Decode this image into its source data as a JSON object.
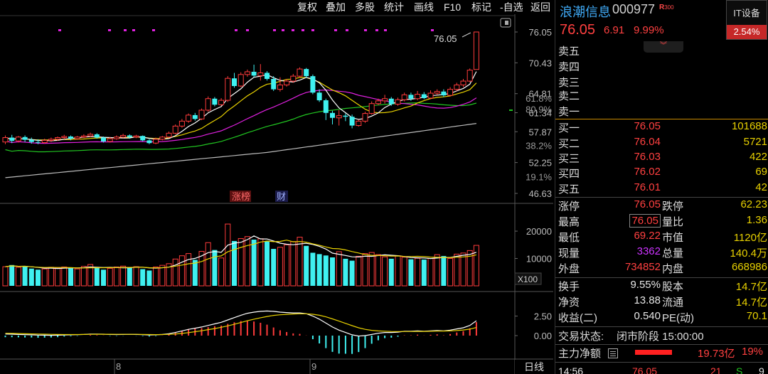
{
  "toolbar": {
    "items": [
      "复权",
      "叠加",
      "多股",
      "统计",
      "画线",
      "F10",
      "标记",
      "-自选",
      "返回"
    ]
  },
  "stock": {
    "name": "浪潮信息",
    "code": "000977",
    "badge": "R",
    "badge_sub": "300",
    "price": "76.05",
    "change": "6.91",
    "change_pct": "9.99%",
    "sector_name": "IT设备",
    "sector_change": "2.54%"
  },
  "order_book": {
    "asks": [
      {
        "label": "卖五"
      },
      {
        "label": "卖四"
      },
      {
        "label": "卖三"
      },
      {
        "label": "卖二"
      },
      {
        "label": "卖一"
      }
    ],
    "bids": [
      {
        "label": "买一",
        "price": "76.05",
        "vol": "101688"
      },
      {
        "label": "买二",
        "price": "76.04",
        "vol": "5721"
      },
      {
        "label": "买三",
        "price": "76.03",
        "vol": "422"
      },
      {
        "label": "买四",
        "price": "76.02",
        "vol": "69"
      },
      {
        "label": "买五",
        "price": "76.01",
        "vol": "42"
      }
    ]
  },
  "quote": {
    "limit_up_label": "涨停",
    "limit_up": "76.05",
    "limit_down_label": "跌停",
    "limit_down": "62.23",
    "high_label": "最高",
    "high": "76.05",
    "vol_ratio_label": "量比",
    "vol_ratio": "1.36",
    "low_label": "最低",
    "low": "69.22",
    "mktcap_label": "市值",
    "mktcap": "1120亿",
    "cur_vol_label": "现量",
    "cur_vol": "3362",
    "total_vol_label": "总量",
    "total_vol": "140.4万",
    "outer_label": "外盘",
    "outer": "734852",
    "inner_label": "内盘",
    "inner": "668986",
    "turnover_label": "换手",
    "turnover": "9.55%",
    "capital_label": "股本",
    "capital": "14.7亿",
    "nav_label": "净资",
    "nav": "13.88",
    "float_label": "流通",
    "float": "14.7亿",
    "eps_label": "收益(二)",
    "eps": "0.540",
    "pe_label": "PE(动)",
    "pe": "70.1",
    "status_label": "交易状态:",
    "status": "闭市阶段 15:00:00",
    "netflow_label": "主力净额",
    "netflow": "19.73亿",
    "netflow_pct": "19%",
    "tick_time": "14:56",
    "tick_price": "76.05",
    "tick_vol": "21",
    "tick_flag": "S",
    "tick_num": "9"
  },
  "chart_labels": {
    "last_price_tag": "76.05",
    "price_ticks": [
      "76.05",
      "70.43",
      "64.81",
      "61.34",
      "57.87",
      "52.25",
      "46.63"
    ],
    "pct_ticks": [
      "80.9%",
      "61.8%",
      "38.2%",
      "19.1%"
    ],
    "vol_ticks": [
      "20000",
      "10000"
    ],
    "vol_unit": "X100",
    "macd_ticks": [
      "2.50",
      "0.00"
    ],
    "x_ticks": [
      "8",
      "9"
    ],
    "period": "日线",
    "tag_limit": "涨榜",
    "tag_fin": "财"
  },
  "colors": {
    "up": "#ff3b3b",
    "down": "#3ff0f0",
    "ma5": "#ffffff",
    "ma10": "#e8d100",
    "ma20": "#e020e0",
    "ma30": "#21c521",
    "ma60": "#bbbbbb"
  },
  "chart_data": {
    "type": "candlestick",
    "y_range": [
      46.63,
      76.05
    ],
    "candles": [
      [
        56.0,
        56.8,
        55.6,
        57.2
      ],
      [
        56.8,
        56.2,
        55.8,
        57.3
      ],
      [
        56.2,
        56.9,
        55.9,
        57.1
      ],
      [
        56.9,
        56.4,
        56.0,
        57.2
      ],
      [
        56.4,
        56.0,
        55.7,
        56.8
      ],
      [
        56.0,
        55.9,
        55.6,
        56.5
      ],
      [
        55.9,
        56.3,
        55.7,
        56.6
      ],
      [
        56.3,
        56.5,
        56.0,
        56.8
      ],
      [
        56.5,
        56.8,
        56.2,
        57.0
      ],
      [
        56.8,
        57.0,
        56.5,
        57.3
      ],
      [
        57.0,
        56.6,
        56.3,
        57.2
      ],
      [
        56.6,
        56.9,
        56.4,
        57.1
      ],
      [
        56.9,
        57.1,
        56.7,
        57.4
      ],
      [
        57.1,
        57.4,
        56.9,
        57.7
      ],
      [
        57.4,
        56.8,
        56.6,
        57.6
      ],
      [
        56.8,
        56.1,
        55.9,
        57.0
      ],
      [
        56.1,
        56.6,
        55.9,
        56.9
      ],
      [
        56.6,
        56.9,
        56.4,
        57.2
      ],
      [
        56.9,
        57.2,
        56.7,
        57.5
      ],
      [
        57.2,
        56.9,
        56.6,
        57.4
      ],
      [
        56.9,
        57.1,
        56.7,
        57.3
      ],
      [
        57.1,
        56.3,
        56.1,
        57.2
      ],
      [
        56.3,
        55.8,
        55.6,
        56.5
      ],
      [
        55.8,
        56.5,
        55.6,
        56.8
      ],
      [
        56.5,
        56.9,
        56.3,
        57.1
      ],
      [
        56.9,
        57.6,
        56.7,
        57.9
      ],
      [
        57.6,
        58.9,
        57.4,
        59.2
      ],
      [
        58.9,
        59.8,
        58.6,
        60.2
      ],
      [
        59.8,
        60.9,
        59.5,
        61.2
      ],
      [
        60.9,
        60.2,
        59.9,
        61.3
      ],
      [
        60.2,
        61.8,
        60.0,
        62.1
      ],
      [
        61.8,
        63.9,
        61.5,
        64.3
      ],
      [
        63.9,
        62.8,
        62.5,
        64.2
      ],
      [
        62.8,
        63.6,
        62.6,
        64.0
      ],
      [
        63.6,
        67.6,
        63.3,
        68.0
      ],
      [
        67.6,
        66.2,
        65.9,
        68.6
      ],
      [
        66.2,
        68.3,
        66.0,
        68.7
      ],
      [
        68.3,
        68.8,
        67.9,
        69.2
      ],
      [
        68.8,
        68.1,
        67.8,
        70.1
      ],
      [
        68.1,
        68.6,
        67.2,
        70.2
      ],
      [
        68.6,
        67.5,
        67.2,
        68.9
      ],
      [
        67.5,
        65.6,
        65.3,
        68.0
      ],
      [
        65.6,
        66.4,
        65.2,
        67.8
      ],
      [
        66.4,
        67.1,
        66.1,
        67.5
      ],
      [
        67.1,
        68.0,
        66.8,
        68.4
      ],
      [
        68.0,
        69.3,
        67.7,
        69.6
      ],
      [
        69.3,
        68.0,
        67.7,
        69.5
      ],
      [
        68.0,
        65.0,
        64.7,
        68.3
      ],
      [
        65.0,
        63.6,
        63.3,
        65.6
      ],
      [
        63.6,
        61.3,
        60.0,
        63.9
      ],
      [
        61.3,
        60.4,
        59.2,
        61.7
      ],
      [
        60.4,
        60.8,
        59.0,
        61.8
      ],
      [
        60.8,
        60.6,
        59.8,
        61.2
      ],
      [
        60.6,
        59.0,
        58.5,
        61.0
      ],
      [
        59.0,
        59.8,
        58.8,
        60.1
      ],
      [
        59.8,
        61.2,
        59.5,
        61.5
      ],
      [
        61.2,
        63.0,
        61.0,
        63.4
      ],
      [
        63.0,
        63.5,
        62.7,
        63.9
      ],
      [
        63.5,
        63.9,
        63.0,
        64.6
      ],
      [
        63.9,
        62.9,
        62.6,
        64.2
      ],
      [
        62.9,
        63.7,
        62.6,
        64.1
      ],
      [
        63.7,
        64.6,
        63.4,
        65.0
      ],
      [
        64.6,
        63.9,
        63.5,
        65.0
      ],
      [
        63.9,
        64.7,
        63.6,
        65.3
      ],
      [
        64.7,
        64.0,
        63.8,
        65.1
      ],
      [
        64.0,
        64.9,
        63.8,
        65.4
      ],
      [
        64.9,
        65.2,
        64.6,
        65.6
      ],
      [
        65.2,
        64.5,
        64.2,
        65.6
      ],
      [
        64.5,
        65.6,
        64.3,
        66.0
      ],
      [
        65.6,
        66.4,
        65.3,
        66.8
      ],
      [
        66.4,
        67.1,
        66.0,
        67.5
      ],
      [
        67.1,
        69.1,
        66.9,
        69.4
      ],
      [
        69.22,
        76.05,
        69.22,
        76.05
      ]
    ],
    "volume": [
      7000,
      7600,
      6800,
      7200,
      6300,
      5900,
      6200,
      6800,
      6500,
      6900,
      6400,
      6200,
      7100,
      7800,
      6600,
      5900,
      6400,
      6900,
      7200,
      6800,
      7000,
      6100,
      5600,
      6900,
      7500,
      8100,
      9800,
      11000,
      11800,
      9500,
      12600,
      15800,
      13100,
      10200,
      22600,
      16400,
      17300,
      18000,
      16900,
      17200,
      16300,
      13500,
      14100,
      15000,
      16200,
      17800,
      14600,
      12100,
      11600,
      11100,
      10400,
      12500,
      9900,
      9200,
      10800,
      11800,
      12200,
      11400,
      10600,
      9900,
      11000,
      10500,
      9700,
      10100,
      9600,
      10000,
      11400,
      10900,
      10000,
      11600,
      12000,
      12900,
      14800
    ],
    "macd": {
      "dif": [
        0.2,
        0.18,
        0.15,
        0.12,
        0.1,
        0.06,
        0.05,
        0.04,
        0.05,
        0.08,
        0.1,
        0.12,
        0.15,
        0.2,
        0.2,
        0.18,
        0.15,
        0.14,
        0.15,
        0.16,
        0.15,
        0.12,
        0.08,
        0.1,
        0.15,
        0.25,
        0.4,
        0.6,
        0.8,
        0.95,
        1.1,
        1.3,
        1.5,
        1.7,
        2.0,
        2.3,
        2.6,
        2.85,
        3.0,
        3.1,
        3.15,
        3.1,
        3.0,
        2.95,
        2.9,
        2.9,
        2.8,
        2.5,
        2.1,
        1.6,
        1.1,
        0.7,
        0.4,
        0.1,
        -0.05,
        0.0,
        0.15,
        0.3,
        0.4,
        0.4,
        0.45,
        0.55,
        0.55,
        0.6,
        0.55,
        0.6,
        0.65,
        0.6,
        0.7,
        0.85,
        1.0,
        1.3,
        1.9
      ],
      "dea": [
        0.3,
        0.28,
        0.26,
        0.24,
        0.22,
        0.2,
        0.18,
        0.16,
        0.15,
        0.14,
        0.14,
        0.14,
        0.15,
        0.16,
        0.17,
        0.17,
        0.17,
        0.16,
        0.16,
        0.16,
        0.16,
        0.15,
        0.14,
        0.13,
        0.14,
        0.16,
        0.2,
        0.28,
        0.38,
        0.5,
        0.62,
        0.76,
        0.9,
        1.06,
        1.25,
        1.45,
        1.67,
        1.9,
        2.1,
        2.28,
        2.45,
        2.58,
        2.66,
        2.72,
        2.76,
        2.79,
        2.79,
        2.73,
        2.6,
        2.4,
        2.14,
        1.85,
        1.56,
        1.27,
        1.0,
        0.8,
        0.67,
        0.6,
        0.56,
        0.53,
        0.52,
        0.53,
        0.53,
        0.54,
        0.54,
        0.55,
        0.57,
        0.58,
        0.6,
        0.65,
        0.72,
        0.83,
        1.04
      ]
    }
  }
}
